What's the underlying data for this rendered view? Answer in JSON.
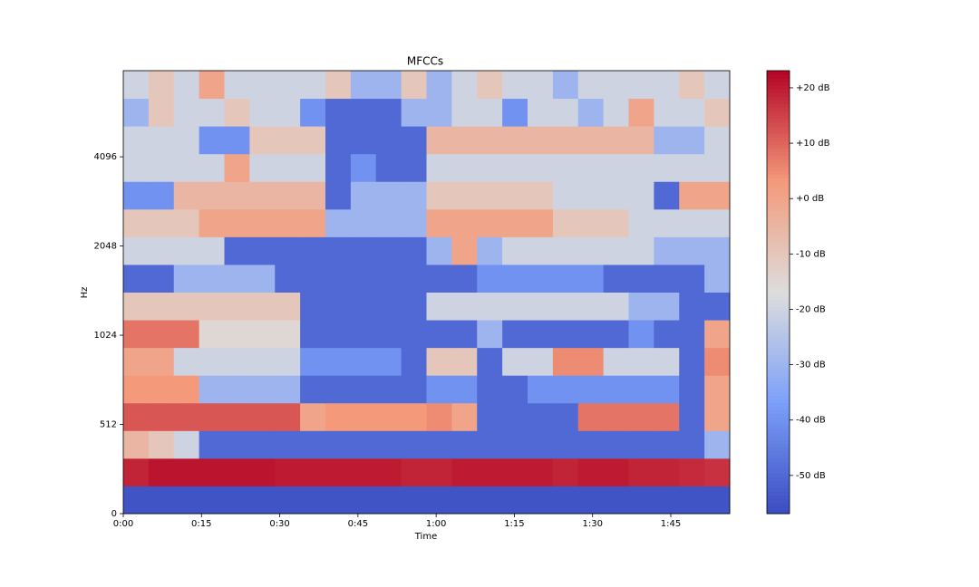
{
  "chart_data": {
    "type": "heatmap",
    "title": "MFCCs",
    "x_label": "Time",
    "y_label": "Hz",
    "xlim": [
      0,
      116.3
    ],
    "xticks": [
      {
        "value": 0,
        "label": "0:00"
      },
      {
        "value": 15,
        "label": "0:15"
      },
      {
        "value": 30,
        "label": "0:30"
      },
      {
        "value": 45,
        "label": "0:45"
      },
      {
        "value": 60,
        "label": "1:00"
      },
      {
        "value": 75,
        "label": "1:15"
      },
      {
        "value": 90,
        "label": "1:30"
      },
      {
        "value": 105,
        "label": "1:45"
      }
    ],
    "ylim": [
      0,
      8000
    ],
    "yscale": "symlog",
    "yticks": [
      0,
      512,
      1024,
      2048,
      4096
    ],
    "colormap": "coolwarm",
    "zlim": [
      -56.9,
      23.1
    ],
    "zticks": [
      {
        "value": 20,
        "label": "+20 dB"
      },
      {
        "value": 10,
        "label": "+10 dB"
      },
      {
        "value": 0,
        "label": "+0 dB"
      },
      {
        "value": -10,
        "label": "-10 dB"
      },
      {
        "value": -20,
        "label": "-20 dB"
      },
      {
        "value": -30,
        "label": "-30 dB"
      },
      {
        "value": -40,
        "label": "-40 dB"
      },
      {
        "value": -50,
        "label": "-50 dB"
      }
    ],
    "z": [
      [
        -55,
        -55,
        -55,
        -55,
        -55,
        -55,
        -55,
        -55,
        -55,
        -55,
        -55,
        -55,
        -55,
        -55,
        -55,
        -55,
        -55,
        -55,
        -55,
        -55,
        -55,
        -55,
        -55,
        -55
      ],
      [
        19,
        21,
        21,
        21,
        21,
        21,
        20,
        20,
        20,
        20,
        20,
        19,
        19,
        20,
        20,
        20,
        20,
        19,
        20,
        20,
        19,
        19,
        18,
        17
      ],
      [
        -5,
        -10,
        -20,
        -50,
        -50,
        -50,
        -50,
        -50,
        -50,
        -50,
        -50,
        -50,
        -50,
        -50,
        -50,
        -50,
        -50,
        -50,
        -50,
        -50,
        -50,
        -50,
        -50,
        -30
      ],
      [
        12,
        12,
        12,
        12,
        12,
        12,
        12,
        0,
        3,
        3,
        3,
        3,
        5,
        0,
        -50,
        -50,
        -50,
        -50,
        8,
        8,
        8,
        8,
        -50,
        0
      ],
      [
        3,
        3,
        3,
        -30,
        -30,
        -30,
        -30,
        -50,
        -50,
        -50,
        -50,
        -50,
        -40,
        -40,
        -50,
        -50,
        -40,
        -40,
        -40,
        -40,
        -40,
        -40,
        -50,
        0
      ],
      [
        0,
        0,
        -20,
        -20,
        -20,
        -20,
        -20,
        -40,
        -40,
        -40,
        -40,
        -50,
        -10,
        -10,
        -50,
        -20,
        -20,
        5,
        5,
        -20,
        -20,
        -20,
        -50,
        5
      ],
      [
        8,
        8,
        8,
        -15,
        -15,
        -15,
        -15,
        -50,
        -50,
        -50,
        -50,
        -50,
        -50,
        -50,
        -30,
        -50,
        -50,
        -50,
        -50,
        -50,
        -40,
        -50,
        -50,
        0
      ],
      [
        -10,
        -10,
        -10,
        -10,
        -10,
        -10,
        -10,
        -50,
        -50,
        -50,
        -50,
        -50,
        -20,
        -20,
        -20,
        -20,
        -20,
        -20,
        -20,
        -20,
        -30,
        -30,
        -50,
        -50
      ],
      [
        -50,
        -50,
        -30,
        -30,
        -30,
        -30,
        -50,
        -50,
        -50,
        -50,
        -50,
        -50,
        -50,
        -50,
        -40,
        -40,
        -40,
        -40,
        -40,
        -50,
        -50,
        -50,
        -50,
        -30
      ],
      [
        -20,
        -20,
        -20,
        -20,
        -50,
        -50,
        -50,
        -50,
        -50,
        -50,
        -50,
        -50,
        -30,
        0,
        -30,
        -20,
        -20,
        -20,
        -20,
        -20,
        -20,
        -30,
        -30,
        -30
      ],
      [
        -10,
        -10,
        -10,
        0,
        0,
        0,
        0,
        0,
        -30,
        -30,
        -30,
        -30,
        0,
        0,
        0,
        0,
        0,
        -10,
        -10,
        -10,
        -20,
        -20,
        -20,
        -20
      ],
      [
        -40,
        -40,
        -5,
        -5,
        -5,
        -5,
        -5,
        -5,
        -50,
        -30,
        -30,
        -30,
        -10,
        -10,
        -10,
        -10,
        -10,
        -20,
        -20,
        -20,
        -20,
        -50,
        0,
        0
      ],
      [
        -20,
        -20,
        -20,
        -20,
        0,
        -20,
        -20,
        -20,
        -50,
        -40,
        -50,
        -50,
        -20,
        -20,
        -20,
        -20,
        -20,
        -20,
        -20,
        -20,
        -20,
        -20,
        -20,
        -20
      ],
      [
        -20,
        -20,
        -20,
        -40,
        -40,
        -10,
        -10,
        -10,
        -50,
        -50,
        -50,
        -50,
        -5,
        -5,
        -5,
        -5,
        -5,
        -5,
        -5,
        -5,
        -5,
        -30,
        -30,
        -20
      ],
      [
        -30,
        -10,
        -20,
        -20,
        -10,
        -20,
        -20,
        -40,
        -50,
        -50,
        -50,
        -30,
        -30,
        -20,
        -20,
        -40,
        -20,
        -20,
        -30,
        -20,
        0,
        -20,
        -20,
        -10
      ],
      [
        -20,
        -10,
        -20,
        0,
        -20,
        -20,
        -20,
        -20,
        -10,
        -30,
        -30,
        -10,
        -30,
        -20,
        -10,
        -20,
        -20,
        -30,
        -20,
        -20,
        -20,
        -20,
        -10,
        -20
      ]
    ]
  }
}
